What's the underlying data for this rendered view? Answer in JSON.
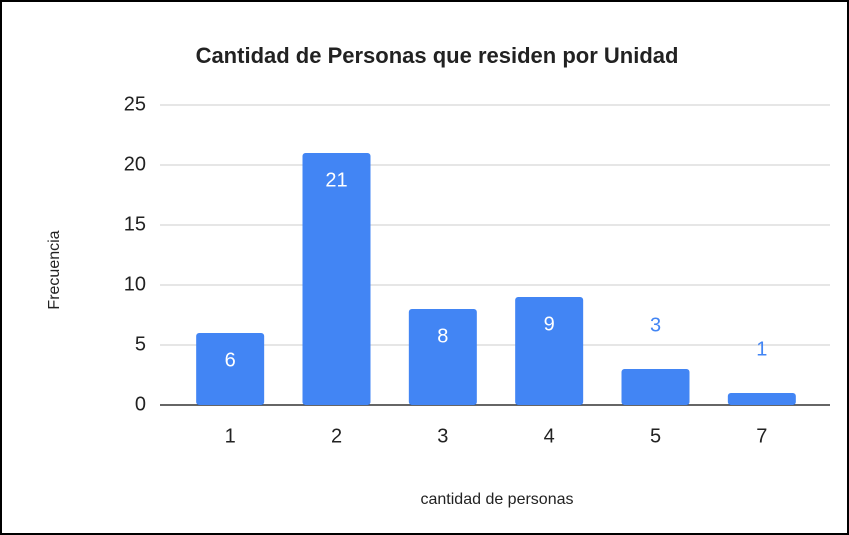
{
  "chart_data": {
    "type": "bar",
    "title": "Cantidad de Personas que residen por Unidad",
    "x_label": "cantidad de personas",
    "y_label": "Frecuencia",
    "categories": [
      "1",
      "2",
      "3",
      "4",
      "5",
      "7"
    ],
    "values": [
      6,
      21,
      8,
      9,
      3,
      1
    ],
    "color": "#4285f4",
    "ylim": [
      0,
      25
    ],
    "yticks": [
      0,
      5,
      10,
      15,
      20,
      25
    ],
    "grid": true
  }
}
